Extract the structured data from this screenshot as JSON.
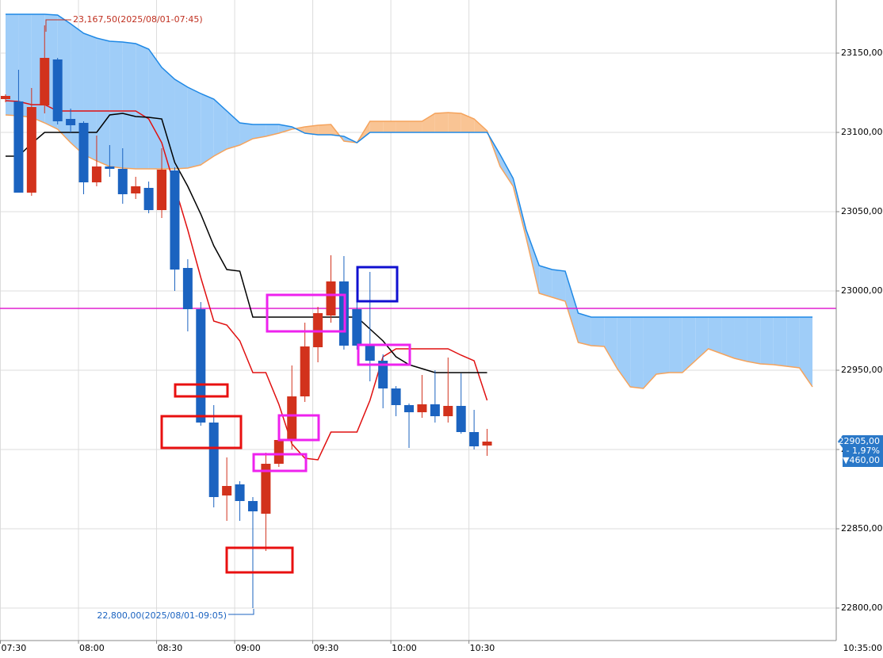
{
  "chart_data": {
    "type": "candlestick",
    "categories": [
      "07:30",
      null,
      null,
      null,
      null,
      null,
      "08:00",
      null,
      null,
      null,
      null,
      null,
      "08:30",
      null,
      null,
      null,
      null,
      null,
      "09:00",
      null,
      null,
      null,
      null,
      null,
      "09:30",
      null,
      null,
      null,
      null,
      null,
      "10:00",
      null,
      null,
      null,
      null,
      null,
      "10:30",
      null,
      null,
      null,
      null,
      null,
      null,
      null,
      null,
      null,
      null,
      null,
      null,
      null,
      null,
      null,
      null,
      null,
      null,
      null,
      null,
      null,
      null,
      null,
      null,
      null,
      null
    ],
    "current_time_label": "10:35:00",
    "ylim": [
      22779.5,
      23183.5
    ],
    "yticks": [
      {
        "value": 22800,
        "label": "22800,00"
      },
      {
        "value": 22850,
        "label": "22850,00"
      },
      {
        "value": 22900,
        "label": "22900,00"
      },
      {
        "value": 22950,
        "label": "22950,00"
      },
      {
        "value": 23000,
        "label": "23000,00"
      },
      {
        "value": 23050,
        "label": "23050,00"
      },
      {
        "value": 23100,
        "label": "23100,00"
      },
      {
        "value": 23150,
        "label": "23150,00"
      }
    ],
    "grid": true,
    "up_color": "#d2321c",
    "down_color": "#1b63c0",
    "candles": {
      "open": [
        23121,
        23119.5,
        23062,
        23117,
        23146,
        23108.5,
        23106,
        23068.5,
        23078.5,
        23077,
        23061.5,
        23065,
        23051,
        23076,
        23014.5,
        22988.5,
        22917,
        22871,
        22878,
        22867.5,
        22859.5,
        22891,
        22906,
        22933.5,
        22964.5,
        22984.5,
        23006,
        22988.5,
        22966,
        22956,
        22938.5,
        22928,
        22923.5,
        22928.5,
        22921,
        22927.5,
        22911,
        22902.5
      ],
      "high": [
        23124,
        23139.5,
        23128,
        23167.5,
        23147,
        23115,
        23107,
        23098,
        23092,
        23090,
        23072,
        23069,
        23090,
        23078,
        23020,
        22993,
        22928,
        22895,
        22880,
        22870,
        22898,
        22914,
        22953,
        22980,
        22990,
        23022.5,
        23022,
        22999,
        23012,
        22960,
        22940,
        22929,
        22947,
        22950,
        22958,
        22948,
        22925,
        22913
      ],
      "low": [
        23119,
        23062,
        23060,
        23112,
        23105,
        23100,
        23061,
        23066,
        23072,
        23055,
        23058,
        23049,
        23046,
        23000,
        22974.5,
        22915,
        22863.5,
        22855,
        22855,
        22800,
        22836,
        22889,
        22900,
        22930,
        22955,
        22980,
        22963,
        22963,
        22943,
        22926,
        22921,
        22901,
        22920,
        22917,
        22917,
        22910,
        22900,
        22896
      ],
      "close": [
        23123,
        23062,
        23116,
        23147,
        23107,
        23104.5,
        23068.5,
        23078.5,
        23077,
        23061,
        23066,
        23051,
        23076.5,
        23013.5,
        22988.5,
        22917,
        22870,
        22877,
        22867.5,
        22861,
        22891,
        22906,
        22933.5,
        22965,
        22986,
        23006,
        22965.5,
        22965.5,
        22956,
        22938.5,
        22928,
        22923.5,
        22928.5,
        22921,
        22927.5,
        22911,
        22902,
        22905
      ]
    },
    "lines": [
      {
        "color": "#e01010",
        "values": [
          23120,
          23119.5,
          23117.5,
          23117.5,
          23113.5,
          23113.5,
          23113.5,
          23113.5,
          23113.5,
          23113.5,
          23113.5,
          23108.5,
          23093.5,
          23066,
          23038.5,
          23008.5,
          22981,
          22978.5,
          22968.5,
          22948.5,
          22948.5,
          22928.5,
          22903.5,
          22894.5,
          22893.5,
          22911,
          22911,
          22911,
          22931,
          22958.5,
          22963.5,
          22963.5,
          22963.5,
          22963.5,
          22963.5,
          22959.5,
          22956,
          22931
        ]
      },
      {
        "color": "#000000",
        "values": [
          23085,
          23085,
          23093,
          23100,
          23100,
          23100,
          23100,
          23100,
          23111,
          23112,
          23110,
          23109.5,
          23108.5,
          23081,
          23066,
          23048.5,
          23028.5,
          23013.5,
          23012.5,
          22983.5,
          22983.5,
          22983.5,
          22983.5,
          22983.5,
          22983.5,
          22983.5,
          22983.5,
          22983.5,
          22976,
          22968.5,
          22958.5,
          22953.5,
          22951,
          22948.5,
          22948.5,
          22948.5,
          22948.5,
          22948.5
        ]
      }
    ],
    "cloud": {
      "span_a": {
        "color": "#1e88e5",
        "fill": "#9fcdf8",
        "values": [
          23174.5,
          23174.5,
          23174.5,
          23174.5,
          23174,
          23168.5,
          23162.5,
          23159.5,
          23157.5,
          23157,
          23156,
          23152.5,
          23141,
          23133.5,
          23128.5,
          23124.5,
          23121,
          23113.5,
          23106,
          23105,
          23105,
          23105,
          23103.5,
          23099.5,
          23098.5,
          23098.5,
          23097.5,
          23093.5,
          23100,
          23100,
          23100,
          23100,
          23100,
          23100,
          23100,
          23100,
          23100,
          23100,
          23086,
          23071,
          23038.5,
          23016,
          23013.5,
          23012.5,
          22986,
          22983.5,
          22983.5,
          22983.5,
          22983.5,
          22983.5,
          22983.5,
          22983.5,
          22983.5,
          22983.5,
          22983.5,
          22983.5,
          22983.5,
          22983.5,
          22983.5,
          22983.5,
          22983.5,
          22983.5,
          22983.5
        ]
      },
      "span_b": {
        "color": "#f5a35c",
        "fill": "#f9c494",
        "values": [
          23111,
          23110.5,
          23109.5,
          23106,
          23102,
          23093.5,
          23086,
          23082,
          23078.5,
          23077.5,
          23077,
          23077,
          23077,
          23077,
          23077.5,
          23079.5,
          23085,
          23089.5,
          23092,
          23096,
          23097.5,
          23099.5,
          23102,
          23103.5,
          23104.5,
          23105,
          23094.5,
          23093.5,
          23107,
          23107,
          23107,
          23107,
          23107,
          23112,
          23112.5,
          23112,
          23108.5,
          23101,
          23078.5,
          23066,
          23033.5,
          22998.5,
          22996,
          22993.5,
          22967.5,
          22965.5,
          22965,
          22951,
          22939.5,
          22938.5,
          22947.5,
          22948.5,
          22948.5,
          22956,
          22963.5,
          22960.5,
          22957.5,
          22955.5,
          22954,
          22953.5,
          22952.5,
          22951.5,
          22939.5
        ]
      }
    },
    "hline": {
      "value": 22989,
      "color": "#e020d0"
    },
    "high_label": "23,167,50(2025/08/01-07:45)",
    "low_label": "22,800,00(2025/08/01-09:05)",
    "last_price": {
      "value": 22905,
      "label": "22905,00",
      "change_pct": "- 1,97%",
      "change": "▼460,00"
    }
  }
}
